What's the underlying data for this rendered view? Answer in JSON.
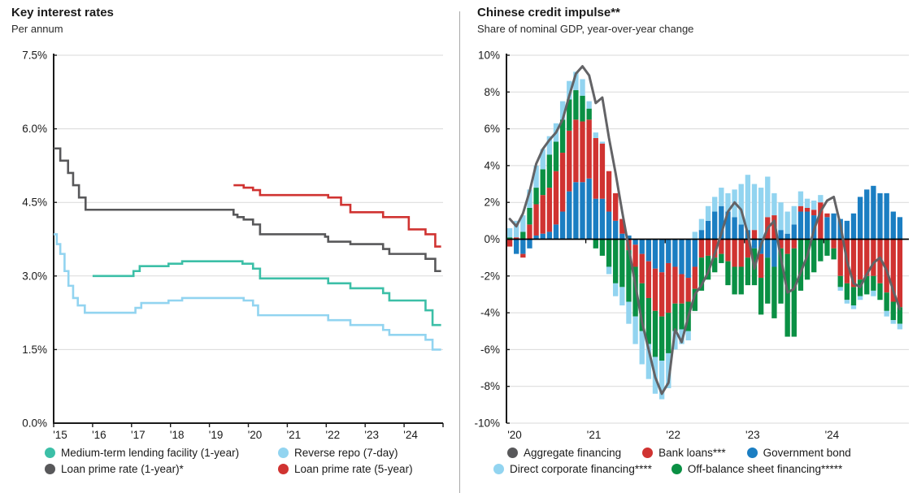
{
  "page": {
    "background": "#ffffff",
    "divider_color": "#a9a9a9",
    "axis_color": "#1a1a1a",
    "grid_color": "#d9d9d9"
  },
  "charts": [
    {
      "id": "key-interest-rates",
      "title": "Key interest rates",
      "subtitle": "Per annum",
      "y_axis": {
        "tick_labels": [
          "7.5%",
          "6.0%",
          "4.5%",
          "3.0%",
          "1.5%",
          "0.0%"
        ],
        "tick_values": [
          7.5,
          6.0,
          4.5,
          3.0,
          1.5,
          0.0
        ],
        "min": 0,
        "max": 7.5
      },
      "x_axis": {
        "tick_labels": [
          "'15",
          "'16",
          "'17",
          "'18",
          "'19",
          "'20",
          "'21",
          "'22",
          "'23",
          "'24"
        ],
        "tick_values": [
          2015,
          2016,
          2017,
          2018,
          2019,
          2020,
          2021,
          2022,
          2023,
          2024
        ],
        "min": 2015,
        "max": 2025
      },
      "legend_rows": [
        [
          {
            "label": "Medium-term lending facility (1-year)",
            "color": "#3cbfa7"
          },
          {
            "label": "Reverse repo (7-day)",
            "color": "#92d4f0"
          }
        ],
        [
          {
            "label": "Loan prime rate (1-year)*",
            "color": "#58585a"
          },
          {
            "label": "Loan prime rate (5-year)",
            "color": "#d03331"
          }
        ]
      ]
    },
    {
      "id": "chinese-credit-impulse",
      "title": "Chinese credit impulse**",
      "subtitle": "Share of nominal GDP, year-over-year change",
      "y_axis": {
        "tick_labels": [
          "10%",
          "8%",
          "6%",
          "4%",
          "2%",
          "0%",
          "-2%",
          "-4%",
          "-6%",
          "-8%",
          "-10%"
        ],
        "tick_values": [
          10,
          8,
          6,
          4,
          2,
          0,
          -2,
          -4,
          -6,
          -8,
          -10
        ],
        "min": -10,
        "max": 10
      },
      "x_axis": {
        "tick_labels": [
          "'20",
          "'21",
          "'22",
          "'23",
          "'24"
        ],
        "tick_values": [
          2020,
          2021,
          2022,
          2023,
          2024
        ],
        "min": 2020,
        "max": 2025
      },
      "legend_rows": [
        [
          {
            "label": "Aggregate financing",
            "color": "#58585a"
          },
          {
            "label": "Bank loans***",
            "color": "#d03331"
          },
          {
            "label": "Government bond",
            "color": "#1b7ec2"
          }
        ],
        [
          {
            "label": "Direct corporate financing****",
            "color": "#92d4f0"
          },
          {
            "label": "Off-balance sheet financing*****",
            "color": "#0a9044"
          }
        ]
      ]
    }
  ],
  "chart_data": [
    {
      "type": "line",
      "title": "Key interest rates",
      "subtitle": "Per annum",
      "ylabel": "Per annum (%)",
      "ylim": [
        0,
        7.5
      ],
      "xlim": [
        2015,
        2025
      ],
      "grid": true,
      "legend_position": "bottom",
      "line_style": "step-after",
      "x_end": 2024.95,
      "series": [
        {
          "name": "Medium-term lending facility (1-year)",
          "color": "#3cbfa7",
          "steps": [
            [
              2016.0,
              3.0
            ],
            [
              2017.05,
              3.1
            ],
            [
              2017.21,
              3.2
            ],
            [
              2017.95,
              3.25
            ],
            [
              2018.3,
              3.3
            ],
            [
              2019.85,
              3.25
            ],
            [
              2020.12,
              3.15
            ],
            [
              2020.3,
              2.95
            ],
            [
              2022.05,
              2.85
            ],
            [
              2022.62,
              2.75
            ],
            [
              2023.46,
              2.65
            ],
            [
              2023.62,
              2.5
            ],
            [
              2024.55,
              2.3
            ],
            [
              2024.73,
              2.0
            ]
          ]
        },
        {
          "name": "Reverse repo (7-day)",
          "color": "#92d4f0",
          "steps": [
            [
              2015.0,
              3.85
            ],
            [
              2015.08,
              3.65
            ],
            [
              2015.17,
              3.45
            ],
            [
              2015.28,
              3.1
            ],
            [
              2015.38,
              2.8
            ],
            [
              2015.5,
              2.55
            ],
            [
              2015.62,
              2.4
            ],
            [
              2015.8,
              2.25
            ],
            [
              2017.1,
              2.35
            ],
            [
              2017.25,
              2.45
            ],
            [
              2017.95,
              2.5
            ],
            [
              2018.3,
              2.55
            ],
            [
              2019.88,
              2.5
            ],
            [
              2020.12,
              2.4
            ],
            [
              2020.25,
              2.2
            ],
            [
              2022.05,
              2.1
            ],
            [
              2022.62,
              2.0
            ],
            [
              2023.46,
              1.9
            ],
            [
              2023.62,
              1.8
            ],
            [
              2024.55,
              1.7
            ],
            [
              2024.73,
              1.5
            ]
          ]
        },
        {
          "name": "Loan prime rate (1-year)*",
          "color": "#58585a",
          "steps": [
            [
              2015.0,
              5.6
            ],
            [
              2015.17,
              5.35
            ],
            [
              2015.37,
              5.1
            ],
            [
              2015.5,
              4.85
            ],
            [
              2015.65,
              4.6
            ],
            [
              2015.82,
              4.35
            ],
            [
              2019.62,
              4.25
            ],
            [
              2019.72,
              4.2
            ],
            [
              2019.88,
              4.15
            ],
            [
              2020.12,
              4.05
            ],
            [
              2020.3,
              3.85
            ],
            [
              2021.97,
              3.8
            ],
            [
              2022.05,
              3.7
            ],
            [
              2022.62,
              3.65
            ],
            [
              2023.46,
              3.55
            ],
            [
              2023.62,
              3.45
            ],
            [
              2024.55,
              3.35
            ],
            [
              2024.8,
              3.1
            ]
          ]
        },
        {
          "name": "Loan prime rate (5-year)",
          "color": "#d03331",
          "steps": [
            [
              2019.62,
              4.85
            ],
            [
              2019.88,
              4.8
            ],
            [
              2020.12,
              4.75
            ],
            [
              2020.3,
              4.65
            ],
            [
              2022.05,
              4.6
            ],
            [
              2022.38,
              4.45
            ],
            [
              2022.62,
              4.3
            ],
            [
              2023.46,
              4.2
            ],
            [
              2024.12,
              3.95
            ],
            [
              2024.55,
              3.85
            ],
            [
              2024.8,
              3.6
            ]
          ]
        }
      ]
    },
    {
      "type": "bar",
      "bar_mode": "stacked-with-line-overlay",
      "title": "Chinese credit impulse**",
      "subtitle": "Share of nominal GDP, year-over-year change",
      "ylabel": "Share of nominal GDP, year-over-year change (%)",
      "ylim": [
        -10,
        10
      ],
      "grid": true,
      "legend_position": "bottom",
      "x_start_year": 2020,
      "frequency": "monthly",
      "months": 60,
      "series": [
        {
          "name": "Government bond",
          "color": "#1b7ec2",
          "values": [
            0.0,
            -0.8,
            -0.8,
            -0.5,
            0.2,
            0.3,
            0.4,
            0.8,
            1.5,
            2.6,
            3.1,
            3.1,
            3.3,
            2.2,
            2.2,
            1.5,
            1.0,
            0.3,
            0.2,
            -0.3,
            -0.8,
            -1.2,
            -1.6,
            -1.8,
            -1.3,
            -1.5,
            -1.9,
            -2.1,
            -1.5,
            0.5,
            1.0,
            1.5,
            1.8,
            1.5,
            1.2,
            0.8,
            0.5,
            -0.5,
            -0.8,
            -1.0,
            -1.5,
            0.5,
            0.3,
            0.8,
            1.5,
            1.5,
            1.3,
            0.0,
            1.2,
            1.4,
            1.1,
            1.0,
            1.4,
            2.3,
            2.7,
            2.9,
            2.5,
            2.5,
            1.5,
            1.2
          ]
        },
        {
          "name": "Bank loans***",
          "color": "#d03331",
          "values": [
            -0.4,
            0.1,
            -0.2,
            0.8,
            1.7,
            2.1,
            2.4,
            2.9,
            3.2,
            3.3,
            3.4,
            3.3,
            3.2,
            3.3,
            3.0,
            2.2,
            1.5,
            0.8,
            -0.6,
            -1.2,
            -1.6,
            -2.0,
            -2.3,
            -2.4,
            -2.7,
            -2.0,
            -1.6,
            -1.3,
            -1.2,
            -1.0,
            -0.9,
            -1.0,
            -0.8,
            -1.2,
            -1.5,
            -1.5,
            -1.0,
            0.5,
            -1.3,
            1.2,
            1.3,
            -0.5,
            -0.8,
            -0.5,
            0.3,
            0.2,
            0.3,
            2.0,
            0.2,
            -0.5,
            -2.0,
            -2.4,
            -2.6,
            -2.2,
            -2.0,
            -2.0,
            -2.4,
            -2.9,
            -3.4,
            -3.7
          ]
        },
        {
          "name": "Off-balance sheet financing*****",
          "color": "#0a9044",
          "values": [
            0.1,
            0.0,
            0.4,
            0.9,
            0.9,
            1.4,
            1.8,
            1.6,
            1.8,
            1.7,
            1.6,
            1.4,
            0.6,
            -0.5,
            -0.9,
            -1.5,
            -2.4,
            -2.6,
            -2.8,
            -2.7,
            -2.6,
            -2.5,
            -2.5,
            -2.4,
            -2.2,
            -1.5,
            -1.4,
            -1.6,
            -1.2,
            -1.8,
            -1.3,
            -0.8,
            -0.5,
            -1.3,
            -1.5,
            -1.5,
            -1.5,
            -2.0,
            -2.0,
            -2.5,
            -2.8,
            -3.0,
            -4.5,
            -4.8,
            -2.8,
            -2.2,
            -1.8,
            -1.2,
            -0.9,
            -0.6,
            -0.6,
            -0.9,
            -1.0,
            -0.9,
            -1.0,
            -0.8,
            -0.9,
            -1.0,
            -1.0,
            -0.9
          ]
        },
        {
          "name": "Direct corporate financing****",
          "color": "#92d4f0",
          "values": [
            0.5,
            0.9,
            0.9,
            1.0,
            1.2,
            1.1,
            1.0,
            1.0,
            1.0,
            1.0,
            1.0,
            0.9,
            0.4,
            0.3,
            0.1,
            -0.4,
            -0.7,
            -1.0,
            -1.2,
            -1.5,
            -1.8,
            -1.9,
            -2.0,
            -2.1,
            -1.9,
            -1.0,
            -0.8,
            -0.5,
            0.4,
            0.6,
            0.8,
            0.8,
            1.0,
            1.0,
            1.5,
            2.2,
            3.0,
            2.5,
            2.8,
            2.2,
            1.2,
            1.5,
            1.2,
            1.0,
            0.8,
            0.5,
            0.5,
            0.4,
            0.0,
            0.0,
            -0.2,
            -0.2,
            -0.2,
            -0.2,
            0.0,
            -0.3,
            0.0,
            -0.3,
            -0.2,
            -0.3
          ]
        }
      ],
      "line_series": {
        "name": "Aggregate financing",
        "color": "#636366",
        "values": [
          1.1,
          0.7,
          1.4,
          2.6,
          4.1,
          4.9,
          5.4,
          5.8,
          6.5,
          7.8,
          9.0,
          9.4,
          8.9,
          7.4,
          7.7,
          5.5,
          3.6,
          1.5,
          -0.5,
          -2.5,
          -4.5,
          -6.0,
          -7.5,
          -8.4,
          -7.8,
          -4.9,
          -5.6,
          -4.2,
          -3.0,
          -2.5,
          -1.8,
          -0.8,
          0.3,
          1.5,
          2.0,
          1.6,
          0.3,
          -1.6,
          -0.3,
          0.6,
          1.0,
          -1.0,
          -2.9,
          -2.7,
          -1.8,
          -0.9,
          0.5,
          1.5,
          2.1,
          2.3,
          0.8,
          -1.2,
          -2.4,
          -2.6,
          -1.9,
          -1.3,
          -1.0,
          -1.7,
          -2.8,
          -3.8
        ]
      }
    }
  ]
}
